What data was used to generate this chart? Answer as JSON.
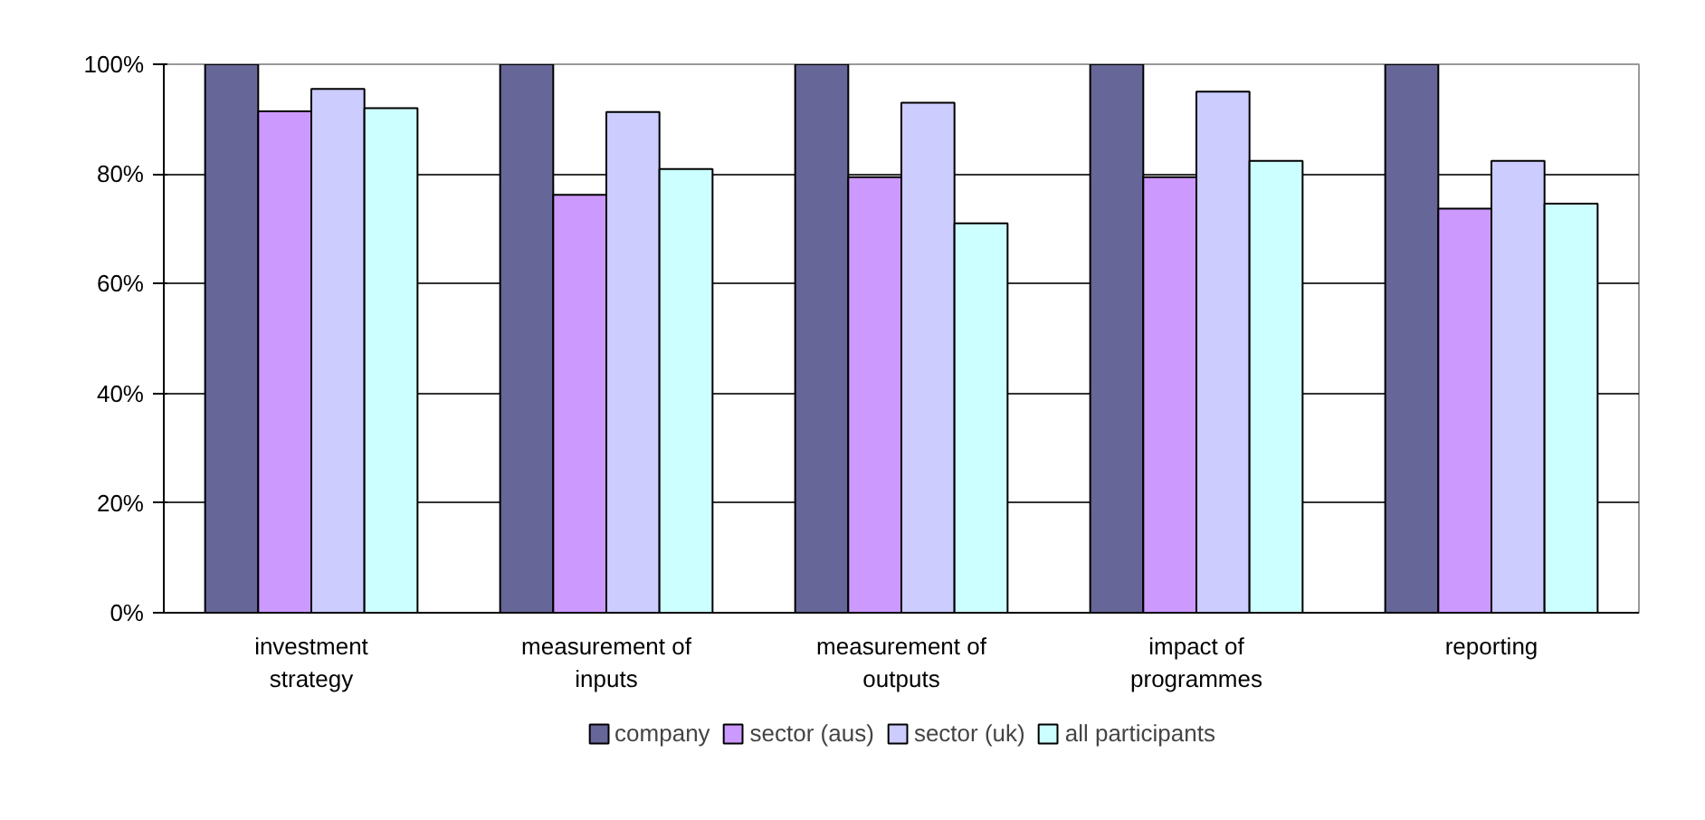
{
  "chart_data": {
    "type": "bar",
    "categories": [
      "investment strategy",
      "measurement of inputs",
      "measurement of outputs",
      "impact of programmes",
      "reporting"
    ],
    "series": [
      {
        "name": "company",
        "color": "#666699",
        "values": [
          100,
          100,
          100,
          100,
          100
        ]
      },
      {
        "name": "sector (aus)",
        "color": "#cc99ff",
        "values": [
          91.4,
          76.2,
          79.4,
          79.4,
          73.7
        ]
      },
      {
        "name": "sector (uk)",
        "color": "#ccccff",
        "values": [
          95.5,
          91.3,
          93.0,
          95.0,
          82.4
        ]
      },
      {
        "name": "all participants",
        "color": "#ccffff",
        "values": [
          92.0,
          80.9,
          71.0,
          82.4,
          74.6
        ]
      }
    ],
    "ylim": [
      0,
      100
    ],
    "yticks": [
      {
        "value": 0,
        "label": "0%"
      },
      {
        "value": 20,
        "label": "20%"
      },
      {
        "value": 40,
        "label": "40%"
      },
      {
        "value": 60,
        "label": "60%"
      },
      {
        "value": 80,
        "label": "80%"
      },
      {
        "value": 100,
        "label": "100%"
      }
    ],
    "grid": "y",
    "legend": "bottom"
  }
}
